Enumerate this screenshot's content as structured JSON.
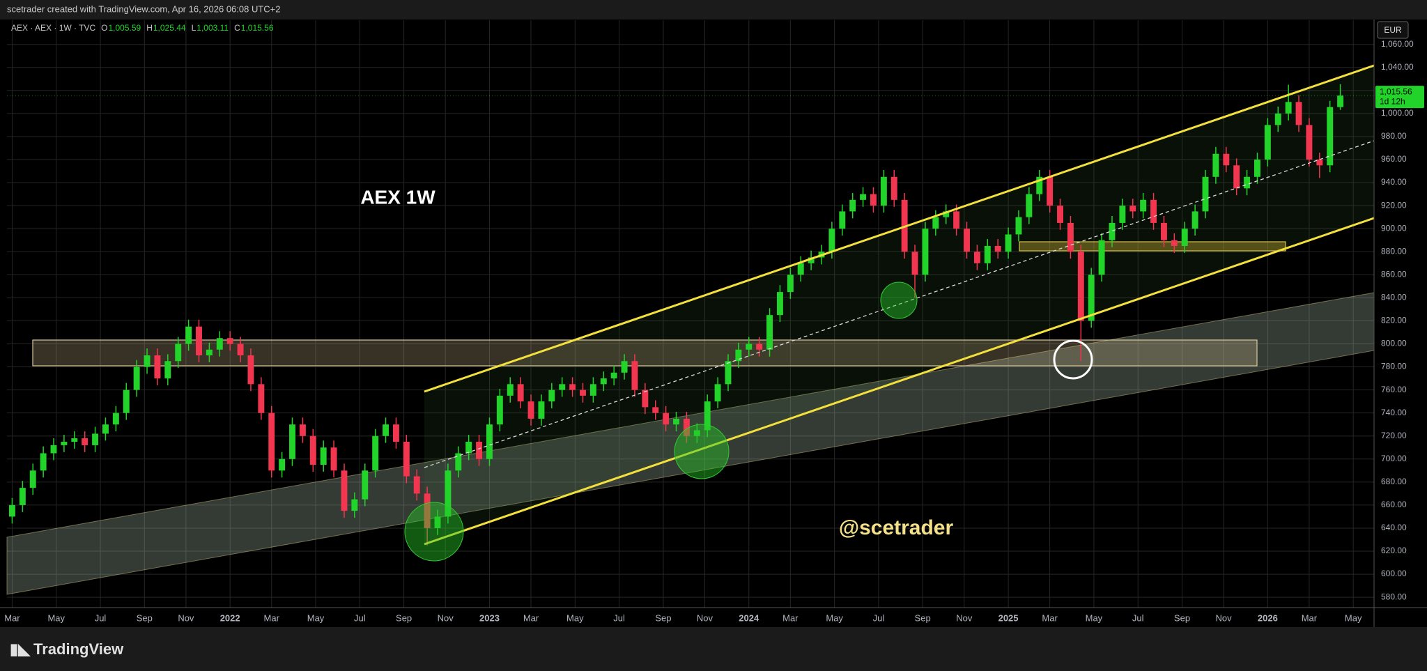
{
  "chart_data": {
    "type": "candlestick",
    "credit": "scetrader created with TradingView.com, Apr 16, 2026 06:08 UTC+2",
    "title": "AEX · AEX · 1W · TVC",
    "ohlc_legend": [
      {
        "key": "O",
        "value": "1,005.59"
      },
      {
        "key": "H",
        "value": "1,025.44"
      },
      {
        "key": "L",
        "value": "1,003.11"
      },
      {
        "key": "C",
        "value": "1,015.56"
      }
    ],
    "annotations": [
      "AEX 1W",
      "@scetrader"
    ],
    "currency": "EUR",
    "price_tag": {
      "price": "1,015.56",
      "countdown": "1d 12h"
    },
    "brand": "TradingView",
    "up_color": "#22d42a",
    "down_color": "#f23650",
    "grid": true,
    "xlim": [
      2021.14,
      2026.41
    ],
    "ylim": [
      571,
      1081
    ],
    "xticks": [
      {
        "value": 2021.16,
        "label": "Mar"
      },
      {
        "value": 2021.33,
        "label": "May"
      },
      {
        "value": 2021.5,
        "label": "Jul"
      },
      {
        "value": 2021.67,
        "label": "Sep"
      },
      {
        "value": 2021.83,
        "label": "Nov"
      },
      2022,
      {
        "value": 2022.16,
        "label": "Mar"
      },
      {
        "value": 2022.33,
        "label": "May"
      },
      {
        "value": 2022.5,
        "label": "Jul"
      },
      {
        "value": 2022.67,
        "label": "Sep"
      },
      {
        "value": 2022.83,
        "label": "Nov"
      },
      2023,
      {
        "value": 2023.16,
        "label": "Mar"
      },
      {
        "value": 2023.33,
        "label": "May"
      },
      {
        "value": 2023.5,
        "label": "Jul"
      },
      {
        "value": 2023.67,
        "label": "Sep"
      },
      {
        "value": 2023.83,
        "label": "Nov"
      },
      2024,
      {
        "value": 2024.16,
        "label": "Mar"
      },
      {
        "value": 2024.33,
        "label": "May"
      },
      {
        "value": 2024.5,
        "label": "Jul"
      },
      {
        "value": 2024.67,
        "label": "Sep"
      },
      {
        "value": 2024.83,
        "label": "Nov"
      },
      2025,
      {
        "value": 2025.16,
        "label": "Mar"
      },
      {
        "value": 2025.33,
        "label": "May"
      },
      {
        "value": 2025.5,
        "label": "Jul"
      },
      {
        "value": 2025.67,
        "label": "Sep"
      },
      {
        "value": 2025.83,
        "label": "Nov"
      },
      2026,
      {
        "value": 2026.16,
        "label": "Mar"
      },
      {
        "value": 2026.33,
        "label": "May"
      }
    ],
    "yticks": [
      {
        "value": 580,
        "label": "580.00"
      },
      {
        "value": 600,
        "label": "600.00"
      },
      {
        "value": 620,
        "label": "620.00"
      },
      {
        "value": 640,
        "label": "640.00"
      },
      {
        "value": 660,
        "label": "660.00"
      },
      {
        "value": 680,
        "label": "680.00"
      },
      {
        "value": 700,
        "label": "700.00"
      },
      {
        "value": 720,
        "label": "720.00"
      },
      {
        "value": 740,
        "label": "740.00"
      },
      {
        "value": 760,
        "label": "760.00"
      },
      {
        "value": 780,
        "label": "780.00"
      },
      {
        "value": 800,
        "label": "800.00"
      },
      {
        "value": 820,
        "label": "820.00"
      },
      {
        "value": 840,
        "label": "840.00"
      },
      {
        "value": 860,
        "label": "860.00"
      },
      {
        "value": 880,
        "label": "880.00"
      },
      {
        "value": 900,
        "label": "900.00"
      },
      {
        "value": 920,
        "label": "920.00"
      },
      {
        "value": 940,
        "label": "940.00"
      },
      {
        "value": 960,
        "label": "960.00"
      },
      {
        "value": 980,
        "label": "980.00"
      },
      {
        "value": 1000,
        "label": "1,000.00"
      },
      {
        "value": 1020,
        "label": "1,020.00"
      },
      {
        "value": 1040,
        "label": "1,040.00"
      },
      {
        "value": 1060,
        "label": "1,060.00"
      }
    ],
    "candles": {
      "x": [
        2021.16,
        2021.2,
        2021.24,
        2021.28,
        2021.32,
        2021.36,
        2021.4,
        2021.44,
        2021.48,
        2021.52,
        2021.56,
        2021.6,
        2021.64,
        2021.68,
        2021.72,
        2021.76,
        2021.8,
        2021.84,
        2021.88,
        2021.92,
        2021.96,
        2022,
        2022.04,
        2022.08,
        2022.12,
        2022.16,
        2022.2,
        2022.24,
        2022.28,
        2022.32,
        2022.36,
        2022.4,
        2022.44,
        2022.48,
        2022.52,
        2022.56,
        2022.6,
        2022.64,
        2022.68,
        2022.72,
        2022.76,
        2022.8,
        2022.84,
        2022.88,
        2022.92,
        2022.96,
        2023,
        2023.04,
        2023.08,
        2023.12,
        2023.16,
        2023.2,
        2023.24,
        2023.28,
        2023.32,
        2023.36,
        2023.4,
        2023.44,
        2023.48,
        2023.52,
        2023.56,
        2023.6,
        2023.64,
        2023.68,
        2023.72,
        2023.76,
        2023.8,
        2023.84,
        2023.88,
        2023.92,
        2023.96,
        2024,
        2024.04,
        2024.08,
        2024.12,
        2024.16,
        2024.2,
        2024.24,
        2024.28,
        2024.32,
        2024.36,
        2024.4,
        2024.44,
        2024.48,
        2024.52,
        2024.56,
        2024.6,
        2024.64,
        2024.68,
        2024.72,
        2024.76,
        2024.8,
        2024.84,
        2024.88,
        2024.92,
        2024.96,
        2025,
        2025.04,
        2025.08,
        2025.12,
        2025.16,
        2025.2,
        2025.24,
        2025.28,
        2025.32,
        2025.36,
        2025.4,
        2025.44,
        2025.48,
        2025.52,
        2025.56,
        2025.6,
        2025.64,
        2025.68,
        2025.72,
        2025.76,
        2025.8,
        2025.84,
        2025.88,
        2025.92,
        2025.96,
        2026,
        2026.04,
        2026.08,
        2026.12,
        2026.16,
        2026.2,
        2026.24,
        2026.28
      ],
      "open": [
        650,
        660,
        675,
        690,
        705,
        712,
        715,
        718,
        712,
        722,
        730,
        740,
        760,
        780,
        790,
        770,
        785,
        800,
        815,
        790,
        795,
        805,
        800,
        790,
        765,
        740,
        690,
        700,
        730,
        720,
        695,
        710,
        690,
        655,
        665,
        690,
        720,
        730,
        715,
        685,
        670,
        640,
        650,
        690,
        705,
        715,
        700,
        730,
        755,
        765,
        750,
        735,
        750,
        760,
        765,
        760,
        755,
        765,
        770,
        775,
        785,
        760,
        745,
        740,
        730,
        735,
        720,
        725,
        750,
        765,
        785,
        795,
        800,
        795,
        825,
        845,
        860,
        870,
        875,
        880,
        900,
        915,
        925,
        930,
        920,
        945,
        925,
        880,
        860,
        900,
        910,
        915,
        900,
        880,
        870,
        885,
        880,
        895,
        910,
        930,
        945,
        920,
        905,
        880,
        820,
        860,
        890,
        905,
        920,
        915,
        925,
        905,
        890,
        885,
        900,
        915,
        945,
        965,
        955,
        935,
        945,
        960,
        990,
        1000,
        1010,
        990,
        960,
        955,
        1005.59
      ],
      "high": [
        666,
        681,
        696,
        711,
        718,
        721,
        724,
        724,
        728,
        736,
        746,
        766,
        786,
        796,
        796,
        791,
        806,
        821,
        821,
        801,
        811,
        811,
        806,
        796,
        771,
        746,
        706,
        736,
        736,
        726,
        716,
        716,
        696,
        671,
        696,
        726,
        736,
        736,
        721,
        691,
        676,
        656,
        696,
        711,
        721,
        721,
        736,
        761,
        771,
        771,
        756,
        756,
        766,
        771,
        771,
        766,
        771,
        776,
        781,
        791,
        791,
        766,
        751,
        746,
        741,
        741,
        731,
        756,
        771,
        791,
        801,
        806,
        806,
        831,
        851,
        866,
        876,
        881,
        886,
        906,
        921,
        931,
        936,
        936,
        951,
        951,
        931,
        886,
        906,
        916,
        921,
        921,
        906,
        886,
        891,
        891,
        901,
        916,
        936,
        951,
        951,
        926,
        911,
        886,
        866,
        896,
        911,
        926,
        926,
        931,
        931,
        911,
        896,
        906,
        921,
        951,
        971,
        971,
        961,
        951,
        966,
        996,
        1006,
        1025,
        1016,
        996,
        966,
        1011,
        1025.44
      ],
      "low": [
        644,
        654,
        669,
        684,
        699,
        706,
        709,
        706,
        706,
        716,
        724,
        734,
        754,
        774,
        764,
        764,
        779,
        794,
        784,
        784,
        789,
        794,
        784,
        759,
        734,
        684,
        684,
        694,
        714,
        689,
        689,
        684,
        649,
        649,
        659,
        684,
        714,
        709,
        679,
        664,
        625,
        634,
        644,
        684,
        699,
        694,
        694,
        724,
        749,
        744,
        729,
        729,
        744,
        754,
        754,
        749,
        749,
        759,
        764,
        769,
        754,
        739,
        734,
        724,
        724,
        714,
        714,
        719,
        744,
        759,
        779,
        789,
        789,
        789,
        819,
        839,
        854,
        864,
        869,
        874,
        894,
        909,
        919,
        914,
        914,
        919,
        874,
        840,
        854,
        894,
        904,
        894,
        874,
        864,
        864,
        874,
        874,
        889,
        904,
        924,
        914,
        899,
        874,
        785,
        814,
        854,
        884,
        899,
        909,
        909,
        899,
        884,
        879,
        879,
        894,
        909,
        939,
        949,
        929,
        929,
        939,
        954,
        984,
        994,
        984,
        954,
        944,
        949,
        1003.11
      ],
      "close": [
        660,
        675,
        690,
        705,
        712,
        715,
        718,
        712,
        722,
        730,
        740,
        760,
        780,
        790,
        770,
        785,
        800,
        815,
        790,
        795,
        805,
        800,
        790,
        765,
        740,
        690,
        700,
        730,
        720,
        695,
        710,
        690,
        655,
        665,
        690,
        720,
        730,
        715,
        685,
        670,
        640,
        650,
        690,
        705,
        715,
        700,
        730,
        755,
        765,
        750,
        735,
        750,
        760,
        765,
        760,
        755,
        765,
        770,
        775,
        785,
        760,
        745,
        740,
        730,
        735,
        720,
        725,
        750,
        765,
        785,
        795,
        800,
        795,
        825,
        845,
        860,
        870,
        875,
        880,
        900,
        915,
        925,
        930,
        920,
        945,
        925,
        880,
        860,
        900,
        910,
        915,
        900,
        880,
        870,
        885,
        880,
        895,
        910,
        930,
        945,
        920,
        905,
        880,
        820,
        860,
        890,
        905,
        920,
        915,
        925,
        905,
        890,
        885,
        900,
        915,
        945,
        965,
        955,
        935,
        945,
        960,
        990,
        1000,
        1010,
        990,
        960,
        955,
        1005.59,
        1015.56
      ]
    }
  }
}
